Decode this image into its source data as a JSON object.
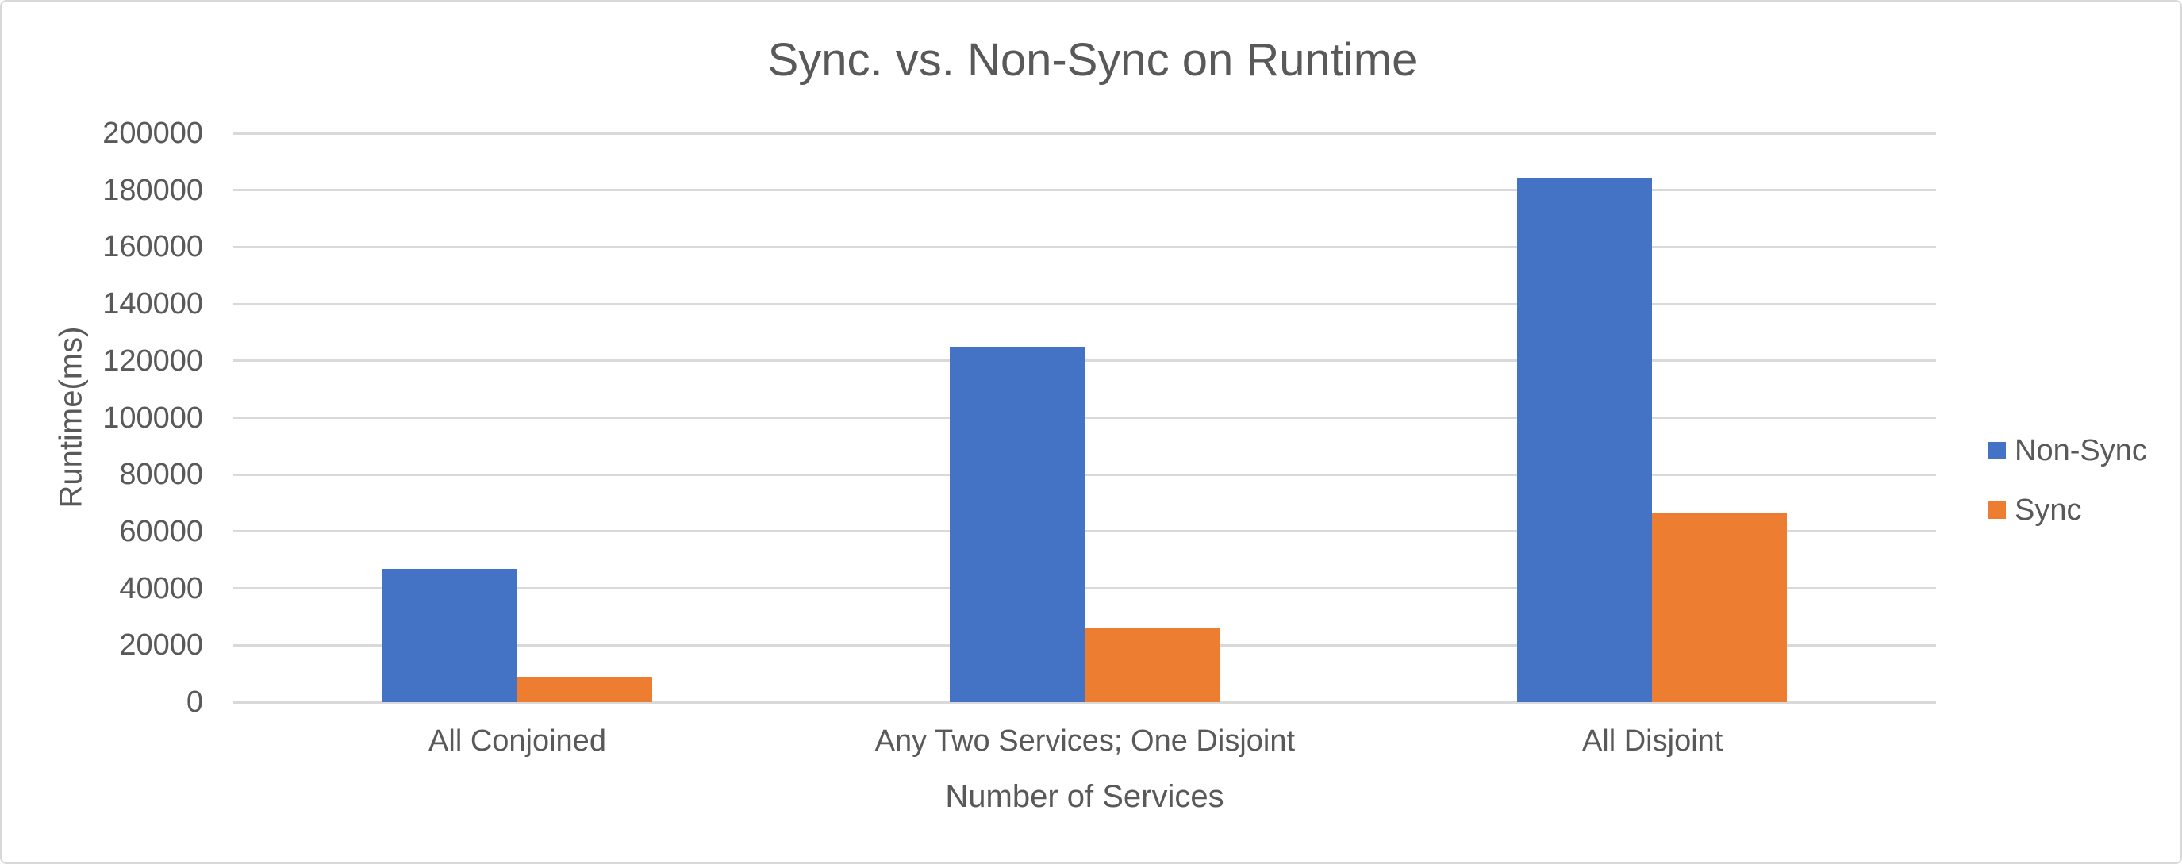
{
  "chart_data": {
    "type": "bar",
    "title": "Sync. vs. Non-Sync on Runtime",
    "xlabel": "Number of Services",
    "ylabel": "Runtime(ms)",
    "categories": [
      "All Conjoined",
      "Any Two Services; One Disjoint",
      "All Disjoint"
    ],
    "series": [
      {
        "name": "Non-Sync",
        "color": "#4472C4",
        "values": [
          47000,
          125000,
          184500
        ]
      },
      {
        "name": "Sync",
        "color": "#ED7D31",
        "values": [
          9000,
          26000,
          66500
        ]
      }
    ],
    "ylim": [
      0,
      200000
    ],
    "ytick_step": 20000,
    "ytick_labels": [
      "0",
      "20000",
      "40000",
      "60000",
      "80000",
      "100000",
      "120000",
      "140000",
      "160000",
      "180000",
      "200000"
    ],
    "grid": true,
    "legend_position": "right"
  },
  "styles": {
    "background": "#FFFFFF",
    "chart_border": "#D8D8D8",
    "gridline": "#D9D9D9",
    "text": "#595959"
  }
}
